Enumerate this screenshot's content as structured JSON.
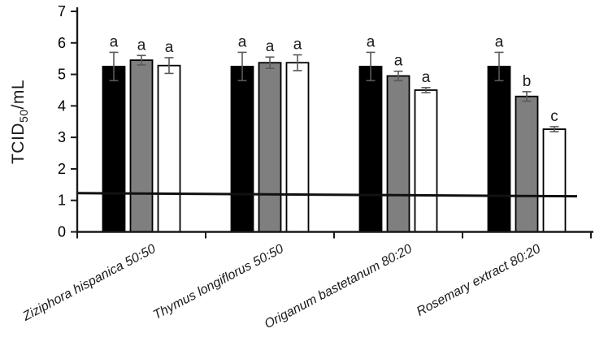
{
  "chart_data": {
    "type": "bar",
    "title": "",
    "xlabel": "",
    "ylabel": {
      "pre": "TCID",
      "sub": "50",
      "post": "/mL"
    },
    "ylim": [
      0,
      7
    ],
    "yticks": [
      0,
      1,
      2,
      3,
      4,
      5,
      6,
      7
    ],
    "grid": false,
    "legend": "none",
    "categories": [
      "Ziziphora hispanica 50:50",
      "Thymus longiflorus 50:50",
      "Origanum bastetanum 80:20",
      "Rosemary extract 80:20"
    ],
    "series": [
      {
        "name": "black",
        "color": "#000000",
        "values": [
          5.25,
          5.25,
          5.25,
          5.25
        ],
        "errors": [
          0.45,
          0.45,
          0.45,
          0.45
        ],
        "letters": [
          "a",
          "a",
          "a",
          "a"
        ]
      },
      {
        "name": "gray",
        "color": "#7f7f7f",
        "values": [
          5.45,
          5.37,
          4.95,
          4.3
        ],
        "errors": [
          0.15,
          0.18,
          0.15,
          0.15
        ],
        "letters": [
          "a",
          "a",
          "a",
          "b"
        ]
      },
      {
        "name": "white",
        "color": "#ffffff",
        "values": [
          5.28,
          5.37,
          4.5,
          3.26
        ],
        "errors": [
          0.25,
          0.25,
          0.08,
          0.08
        ],
        "letters": [
          "a",
          "a",
          "a",
          "c"
        ]
      }
    ],
    "reference_line": {
      "start_value": 1.23,
      "end_value": 1.13
    },
    "error_bar_color": "#595959",
    "axis_color": "#1a1a1a",
    "bar_border_color": "#000000"
  }
}
